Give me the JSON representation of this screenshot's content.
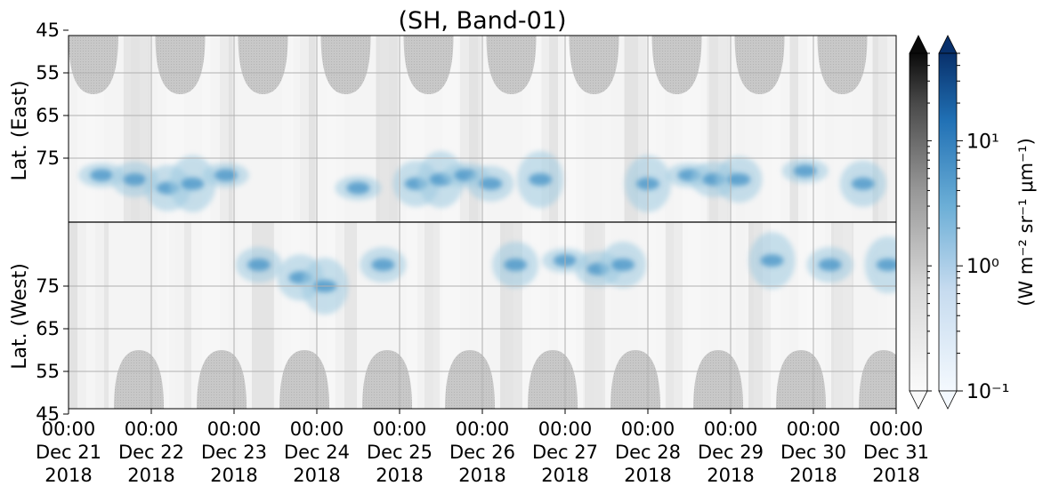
{
  "chart_data": {
    "type": "heatmap",
    "title": "(SH, Band-01)",
    "ylabel_top": "Lat. (East)",
    "ylabel_bottom": "Lat. (West)",
    "y_ticks_top": [
      "45",
      "55",
      "65",
      "75"
    ],
    "y_ticks_bottom": [
      "75",
      "65",
      "55",
      "45"
    ],
    "x_tick_labels": [
      [
        "00:00",
        "Dec 21",
        "2018"
      ],
      [
        "00:00",
        "Dec 22",
        "2018"
      ],
      [
        "00:00",
        "Dec 23",
        "2018"
      ],
      [
        "00:00",
        "Dec 24",
        "2018"
      ],
      [
        "00:00",
        "Dec 25",
        "2018"
      ],
      [
        "00:00",
        "Dec 26",
        "2018"
      ],
      [
        "00:00",
        "Dec 27",
        "2018"
      ],
      [
        "00:00",
        "Dec 28",
        "2018"
      ],
      [
        "00:00",
        "Dec 29",
        "2018"
      ],
      [
        "00:00",
        "Dec 30",
        "2018"
      ],
      [
        "00:00",
        "Dec 31",
        "2018"
      ]
    ],
    "colorbar": {
      "label": "(W m⁻² sr⁻¹ μm⁻¹)",
      "scale": "log",
      "ticks": [
        "10⁻¹",
        "10⁰",
        "10¹"
      ],
      "tick_values": [
        0.1,
        1,
        10
      ],
      "range": [
        0.1,
        50
      ],
      "colormaps": [
        "Greys",
        "Blues"
      ],
      "extend": "both"
    },
    "grid": true,
    "x_unit": "day",
    "x_range": [
      0,
      10
    ],
    "daily_mask_centers": {
      "top": [
        0.3,
        1.35,
        2.35,
        3.35,
        4.35,
        5.35,
        6.35,
        7.35,
        8.35,
        9.35
      ],
      "bottom": [
        0.85,
        1.85,
        2.85,
        3.85,
        4.85,
        5.85,
        6.85,
        7.85,
        8.85,
        9.85
      ]
    },
    "aurora_band_centers_lat": [
      {
        "x": 0.4,
        "lat_east": 79
      },
      {
        "x": 0.8,
        "lat_east": 80
      },
      {
        "x": 1.2,
        "lat_east": 82
      },
      {
        "x": 1.5,
        "lat_east": 81
      },
      {
        "x": 1.9,
        "lat_east": 79
      },
      {
        "x": 2.3,
        "lat_west": 80
      },
      {
        "x": 2.8,
        "lat_west": 77
      },
      {
        "x": 3.1,
        "lat_west": 75
      },
      {
        "x": 3.5,
        "lat_east": 82
      },
      {
        "x": 3.8,
        "lat_west": 80
      },
      {
        "x": 4.2,
        "lat_east": 81
      },
      {
        "x": 4.5,
        "lat_east": 80
      },
      {
        "x": 4.8,
        "lat_east": 79
      },
      {
        "x": 5.1,
        "lat_east": 81
      },
      {
        "x": 5.4,
        "lat_west": 80
      },
      {
        "x": 5.7,
        "lat_east": 80
      },
      {
        "x": 6.0,
        "lat_west": 81
      },
      {
        "x": 6.4,
        "lat_west": 79
      },
      {
        "x": 6.7,
        "lat_west": 80
      },
      {
        "x": 7.0,
        "lat_east": 81
      },
      {
        "x": 7.5,
        "lat_east": 79
      },
      {
        "x": 7.8,
        "lat_east": 80
      },
      {
        "x": 8.1,
        "lat_east": 80
      },
      {
        "x": 8.5,
        "lat_west": 81
      },
      {
        "x": 8.9,
        "lat_east": 78
      },
      {
        "x": 9.2,
        "lat_west": 80
      },
      {
        "x": 9.6,
        "lat_east": 81
      },
      {
        "x": 9.9,
        "lat_west": 80
      }
    ]
  }
}
